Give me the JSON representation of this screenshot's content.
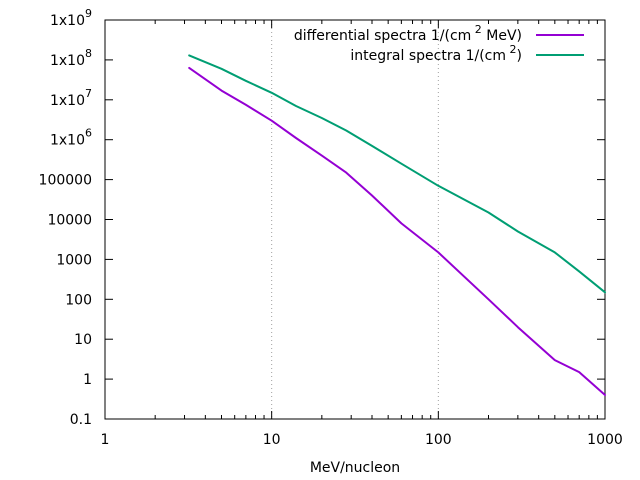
{
  "chart_data": {
    "type": "line",
    "title": "",
    "xlabel": "MeV/nucleon",
    "ylabel": "",
    "x_scale": "log",
    "y_scale": "log",
    "xlim": [
      1,
      1000
    ],
    "ylim": [
      0.1,
      1000000000
    ],
    "grid": "dotted at x=10 and x=100",
    "legend_position": "top-right",
    "x_ticks": [
      {
        "value": 1,
        "label": "1"
      },
      {
        "value": 10,
        "label": "10"
      },
      {
        "value": 100,
        "label": "100"
      },
      {
        "value": 1000,
        "label": "1000"
      }
    ],
    "y_ticks": [
      {
        "value": 0.1,
        "label": "0.1"
      },
      {
        "value": 1,
        "label": "1"
      },
      {
        "value": 10,
        "label": "10"
      },
      {
        "value": 100,
        "label": "100"
      },
      {
        "value": 1000,
        "label": "1000"
      },
      {
        "value": 10000,
        "label": "10000"
      },
      {
        "value": 100000,
        "label": "100000"
      },
      {
        "value": 1000000,
        "base": "1x10",
        "exp": "6"
      },
      {
        "value": 10000000,
        "base": "1x10",
        "exp": "7"
      },
      {
        "value": 100000000,
        "base": "1x10",
        "exp": "8"
      },
      {
        "value": 1000000000,
        "base": "1x10",
        "exp": "9"
      }
    ],
    "series": [
      {
        "name": "differential spectra 1/(cm",
        "name_sup": "2",
        "name_tail": " MeV)",
        "color": "#9400d3",
        "x": [
          3.2,
          5,
          7,
          10,
          14,
          20,
          28,
          40,
          60,
          100,
          200,
          300,
          500,
          700,
          1000
        ],
        "y": [
          63000000,
          17000000,
          7500000,
          3000000,
          1100000,
          400000,
          150000,
          40000,
          8000,
          1500,
          100,
          20,
          3,
          1.5,
          0.4
        ]
      },
      {
        "name": "integral spectra 1/(cm",
        "name_sup": "2",
        "name_tail": ")",
        "color": "#009e73",
        "x": [
          3.2,
          5,
          7,
          10,
          14,
          20,
          28,
          40,
          60,
          100,
          200,
          300,
          500,
          700,
          1000
        ],
        "y": [
          130000000,
          60000000,
          30000000,
          15000000,
          7000000,
          3500000,
          1700000,
          700000,
          250000,
          70000,
          15000,
          5000,
          1500,
          500,
          150
        ]
      }
    ]
  }
}
